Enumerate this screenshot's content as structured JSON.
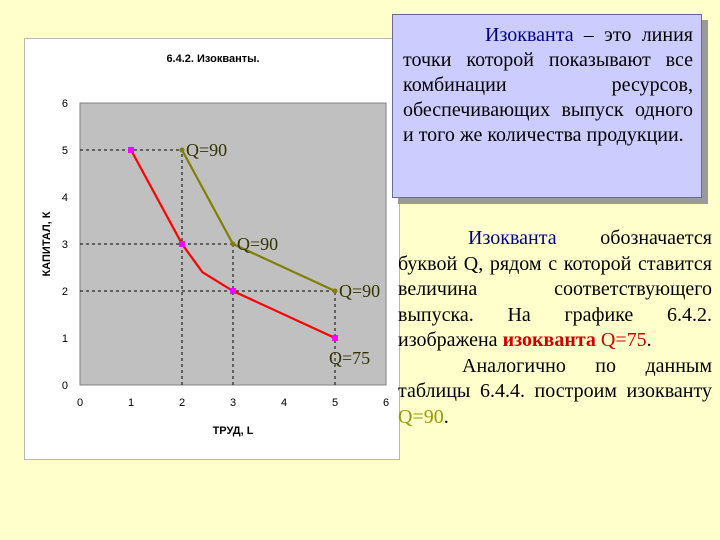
{
  "chart_data": {
    "type": "line",
    "title": "6.4.2. Изокванты.",
    "xlabel": "ТРУД, L",
    "ylabel": "КАПИТАЛ, К",
    "xlim": [
      0,
      6
    ],
    "ylim": [
      0,
      6
    ],
    "x_ticks": [
      0,
      1,
      2,
      3,
      4,
      5,
      6
    ],
    "y_ticks": [
      0,
      1,
      2,
      3,
      4,
      5,
      6
    ],
    "grid": false,
    "series": [
      {
        "name": "Q=75",
        "color": "#ff0000",
        "marker_color": "#ff00ff",
        "points": [
          [
            1,
            5
          ],
          [
            2,
            3
          ],
          [
            2.4,
            2.4
          ],
          [
            3,
            2
          ],
          [
            5,
            1
          ]
        ]
      },
      {
        "name": "Q=90",
        "color": "#808000",
        "marker_color": "#808000",
        "points": [
          [
            2,
            5
          ],
          [
            2.5,
            4
          ],
          [
            3,
            3
          ],
          [
            5,
            2
          ]
        ]
      }
    ],
    "annotations": [
      {
        "text": "Q=90",
        "x": 2,
        "y": 5
      },
      {
        "text": "Q=90",
        "x": 3,
        "y": 3
      },
      {
        "text": "Q=90",
        "x": 5,
        "y": 2
      },
      {
        "text": "Q=75",
        "x": 5,
        "y": 1
      }
    ],
    "guides": [
      {
        "from": [
          0,
          5
        ],
        "to": [
          2,
          5
        ]
      },
      {
        "from": [
          0,
          3
        ],
        "to": [
          3,
          3
        ]
      },
      {
        "from": [
          0,
          2
        ],
        "to": [
          5,
          2
        ]
      },
      {
        "from": [
          2,
          0
        ],
        "to": [
          2,
          5
        ]
      },
      {
        "from": [
          3,
          0
        ],
        "to": [
          3,
          3
        ]
      },
      {
        "from": [
          5,
          0
        ],
        "to": [
          5,
          2
        ]
      }
    ],
    "colors": {
      "plot_area": "#c0c0c0",
      "panel": "#ffffff"
    }
  },
  "definition": {
    "term": "Изокванта",
    "text": " – это линия точки которой показывают все комбинации ресурсов, обеспечивающих выпуск одного и того же количества продукции."
  },
  "body": {
    "p1": {
      "term": "Изокванта",
      "t1": " обозначается буквой Q, рядом с которой ставится величина соответствующего выпуска. На графике 6.4.2. изображена ",
      "term2": "изокванта",
      "t2": " ",
      "q": "Q=75",
      "t3": "."
    },
    "p2": {
      "t1": "Аналогично по данным таблицы 6.4.4. построим изокванту ",
      "q": "Q=90",
      "t2": "."
    }
  }
}
